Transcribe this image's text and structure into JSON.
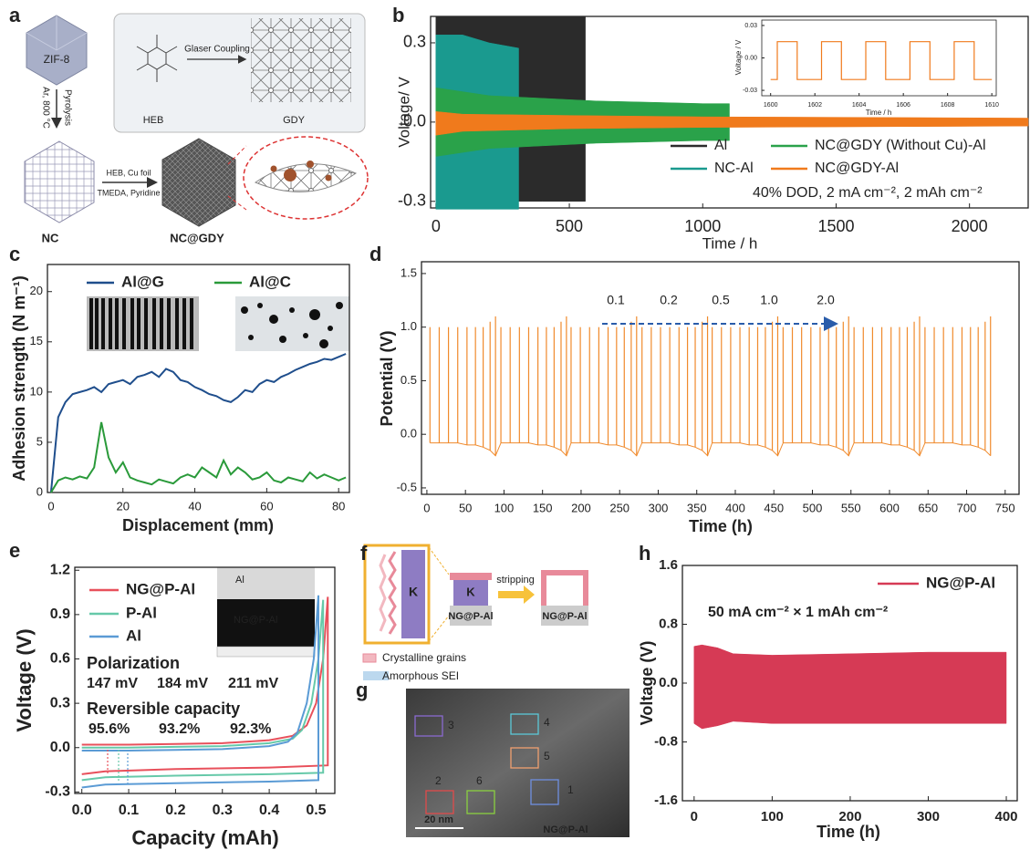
{
  "panel_letters": [
    "a",
    "b",
    "c",
    "d",
    "e",
    "f",
    "g",
    "h"
  ],
  "panel_a": {
    "zif8": "ZIF-8",
    "conditions": "Ar, 800 °C",
    "pyrolysis": "Pyrolysis",
    "heb": "HEB",
    "coupling": "Glaser Coupling",
    "gdy": "GDY",
    "nc": "NC",
    "reagents1": "HEB, Cu foil",
    "reagents2": "TMEDA, Pyridine",
    "ncgdy": "NC@GDY"
  },
  "panel_f": {
    "k_large": "K",
    "k_small": "K",
    "label_before": "NG@P-Al",
    "stripping": "stripping",
    "label_after": "NG@P-Al",
    "legend_grains": "Crystalline grains",
    "legend_sei": "Amorphous SEI"
  },
  "panel_g": {
    "regions": [
      "1",
      "2",
      "3",
      "4",
      "5",
      "6"
    ],
    "scale_bar": "20 nm",
    "sample": "NG@P-Al"
  },
  "chart_data": [
    {
      "type": "band",
      "x_label": "Time / h",
      "y_label": "Voltage/ V",
      "xlim": [
        -20,
        2220
      ],
      "ylim": [
        -0.325,
        0.4
      ],
      "xticks": [
        0,
        500,
        1000,
        1500,
        2000
      ],
      "yticks": [
        -0.3,
        {
          "value": 0,
          "label": "0.0"
        },
        0.3
      ],
      "note": "40% DOD,  2 mA cm⁻², 2 mAh cm⁻²",
      "series": [
        {
          "name": "Al",
          "color": "#2b2b2b",
          "x": [
            0,
            50,
            100,
            200,
            300,
            400,
            500,
            560
          ],
          "upper": [
            0.4,
            0.4,
            0.4,
            0.4,
            0.4,
            0.4,
            0.4,
            0.4
          ],
          "lower": [
            -0.3,
            -0.29,
            -0.3,
            -0.3,
            -0.3,
            -0.3,
            -0.3,
            -0.3
          ]
        },
        {
          "name": "NC-Al",
          "color": "#1a9a8f",
          "x": [
            0,
            100,
            200,
            310
          ],
          "upper": [
            0.33,
            0.33,
            0.3,
            0.28
          ],
          "lower": [
            -0.33,
            -0.33,
            -0.33,
            -0.33
          ]
        },
        {
          "name": "NC@GDY (Without Cu)-Al",
          "color": "#2aa24a",
          "x": [
            0,
            200,
            400,
            600,
            800,
            1000,
            1100
          ],
          "upper": [
            0.13,
            0.1,
            0.09,
            0.08,
            0.075,
            0.07,
            0.07
          ],
          "lower": [
            -0.13,
            -0.1,
            -0.09,
            -0.08,
            -0.075,
            -0.07,
            -0.07
          ]
        },
        {
          "name": "NC@GDY-Al",
          "color": "#f07a1c",
          "x": [
            0,
            100,
            500,
            1000,
            1500,
            2000,
            2220
          ],
          "upper": [
            0.04,
            0.03,
            0.025,
            0.02,
            0.018,
            0.016,
            0.015
          ],
          "lower": [
            -0.05,
            -0.035,
            -0.025,
            -0.02,
            -0.018,
            -0.016,
            -0.015
          ]
        }
      ]
    },
    {
      "type": "line",
      "x_label": "Time / h",
      "y_label": "Voltage / V",
      "xlim": [
        1599.6,
        1610.2
      ],
      "ylim": [
        -0.035,
        0.035
      ],
      "xticks": [
        1600,
        1602,
        1604,
        1606,
        1608,
        1610
      ],
      "yticks": [
        -0.03,
        {
          "value": 0,
          "label": "0.00"
        },
        0.03
      ],
      "x": [
        1600,
        1600.3,
        1600.3,
        1601.2,
        1601.2,
        1602.3,
        1602.3,
        1603.2,
        1603.2,
        1604.3,
        1604.3,
        1605.2,
        1605.2,
        1606.3,
        1606.3,
        1607.2,
        1607.2,
        1608.3,
        1608.3,
        1609.2,
        1609.2,
        1610
      ],
      "series": [
        {
          "color": "#f07a1c",
          "values": [
            -0.02,
            -0.02,
            0.015,
            0.015,
            -0.02,
            -0.02,
            0.015,
            0.015,
            -0.02,
            -0.02,
            0.015,
            0.015,
            -0.02,
            -0.02,
            0.015,
            0.015,
            -0.02,
            -0.02,
            0.015,
            0.015,
            -0.02,
            -0.02
          ]
        }
      ]
    },
    {
      "type": "line",
      "x_label": "Displacement (mm)",
      "y_label": "Adhesion strength (N m⁻¹)",
      "xlim": [
        -1,
        83
      ],
      "ylim": [
        0,
        22.7
      ],
      "xticks": [
        0,
        20,
        40,
        60,
        80
      ],
      "yticks": [
        0,
        5,
        10,
        15,
        20
      ],
      "x": [
        0,
        2,
        4,
        6,
        8,
        10,
        12,
        14,
        16,
        18,
        20,
        22,
        24,
        26,
        28,
        30,
        32,
        34,
        36,
        38,
        40,
        42,
        44,
        46,
        48,
        50,
        52,
        54,
        56,
        58,
        60,
        62,
        64,
        66,
        68,
        70,
        72,
        74,
        76,
        78,
        80,
        82
      ],
      "series": [
        {
          "name": "Al@G",
          "color": "#1f4e8c",
          "values": [
            0,
            7.5,
            9,
            9.8,
            10,
            10.2,
            10.5,
            10,
            10.8,
            11,
            11.2,
            10.8,
            11.5,
            11.7,
            12,
            11.5,
            12.3,
            12,
            11.2,
            11,
            10.5,
            10.2,
            9.8,
            9.6,
            9.2,
            9,
            9.5,
            10.2,
            10,
            10.8,
            11.2,
            11,
            11.5,
            11.8,
            12.2,
            12.5,
            12.8,
            13,
            13.3,
            13.2,
            13.5,
            13.8
          ]
        },
        {
          "name": "Al@C",
          "color": "#2a9a3a",
          "values": [
            0,
            1.2,
            1.5,
            1.3,
            1.6,
            1.4,
            2.5,
            7,
            3.5,
            2,
            3,
            1.5,
            1.2,
            1,
            0.8,
            1.3,
            1.1,
            0.9,
            1.5,
            1.8,
            1.5,
            2.5,
            2,
            1.5,
            3.2,
            1.8,
            2.5,
            2,
            1.3,
            1.5,
            2,
            1.2,
            1,
            1.5,
            1.3,
            1.1,
            2,
            1.4,
            1.8,
            1.5,
            1.2,
            1.5
          ]
        }
      ]
    },
    {
      "type": "spikes",
      "x_label": "Time (h)",
      "y_label": "Potential (V)",
      "xlim": [
        -7,
        768
      ],
      "ylim": [
        -0.56,
        1.61
      ],
      "xticks": [
        0,
        50,
        100,
        150,
        200,
        250,
        300,
        350,
        400,
        450,
        500,
        550,
        600,
        650,
        700,
        750
      ],
      "yticks": [
        -0.5,
        {
          "value": 0,
          "label": "0.0"
        },
        0.5,
        {
          "value": 1,
          "label": "1.0"
        },
        1.5
      ],
      "rates": [
        "0.1",
        "0.2",
        "0.5",
        "1.0",
        "2.0"
      ],
      "series": [
        {
          "color": "#f08a2c",
          "x": [
            4,
            16,
            28,
            40,
            52,
            63,
            73,
            82,
            89,
            96,
            108,
            120,
            132,
            144,
            155,
            165,
            174,
            181,
            187,
            199,
            211,
            223,
            235,
            246,
            256,
            265,
            272,
            279,
            291,
            303,
            315,
            327,
            338,
            348,
            357,
            364,
            370,
            382,
            394,
            406,
            418,
            429,
            439,
            448,
            455,
            462,
            474,
            486,
            498,
            510,
            521,
            531,
            540,
            547,
            554,
            566,
            578,
            590,
            602,
            613,
            623,
            632,
            639,
            646,
            658,
            670,
            682,
            694,
            705,
            715,
            724,
            731
          ],
          "upper": [
            1,
            1,
            1,
            1,
            1,
            1,
            1,
            1.05,
            1.1,
            1,
            1,
            1,
            1,
            1,
            1,
            1,
            1.05,
            1.1,
            1,
            1,
            1,
            1,
            1,
            1,
            1,
            1.05,
            1.1,
            1,
            1,
            1,
            1,
            1,
            1,
            1,
            1.05,
            1.1,
            1,
            1,
            1,
            1,
            1,
            1,
            1,
            1.05,
            1.1,
            1,
            1,
            1,
            1,
            1,
            1,
            1,
            1.05,
            1.1,
            1,
            1,
            1,
            1,
            1,
            1,
            1,
            1.05,
            1.1,
            1,
            1,
            1,
            1,
            1,
            1,
            1,
            1.05,
            1.1
          ],
          "lower": [
            -0.08,
            -0.08,
            -0.08,
            -0.08,
            -0.1,
            -0.1,
            -0.12,
            -0.15,
            -0.2,
            -0.08,
            -0.08,
            -0.08,
            -0.08,
            -0.1,
            -0.1,
            -0.12,
            -0.15,
            -0.2,
            -0.08,
            -0.08,
            -0.08,
            -0.08,
            -0.1,
            -0.1,
            -0.12,
            -0.15,
            -0.2,
            -0.08,
            -0.08,
            -0.08,
            -0.08,
            -0.1,
            -0.1,
            -0.12,
            -0.15,
            -0.2,
            -0.08,
            -0.08,
            -0.08,
            -0.08,
            -0.1,
            -0.1,
            -0.12,
            -0.15,
            -0.2,
            -0.08,
            -0.08,
            -0.08,
            -0.08,
            -0.1,
            -0.1,
            -0.12,
            -0.15,
            -0.2,
            -0.08,
            -0.08,
            -0.08,
            -0.08,
            -0.1,
            -0.1,
            -0.12,
            -0.15,
            -0.2,
            -0.08,
            -0.08,
            -0.08,
            -0.08,
            -0.1,
            -0.1,
            -0.12,
            -0.15,
            -0.2
          ]
        }
      ]
    },
    {
      "type": "line",
      "x_label": "Capacity (mAh)",
      "y_label": "Voltage (V)",
      "xlim": [
        -0.015,
        0.54
      ],
      "ylim": [
        -0.31,
        1.22
      ],
      "xticks": [
        {
          "value": 0,
          "label": "0.0"
        },
        0.1,
        0.2,
        0.3,
        0.4,
        0.5
      ],
      "yticks": [
        -0.3,
        {
          "value": 0,
          "label": "0.0"
        },
        0.3,
        0.6,
        0.9,
        1.2
      ],
      "photo_labels": [
        "Al",
        "NG@P-Al"
      ],
      "polarization": {
        "title": "Polarization",
        "labels": [
          "147 mV",
          "184 mV",
          "211 mV"
        ]
      },
      "reversible_capacity": {
        "title": "Reversible capacity",
        "labels": [
          "95.6%",
          "93.2%",
          "92.3%"
        ]
      },
      "series": [
        {
          "name": "NG@P-Al",
          "color": "#e8505b",
          "x": [
            0,
            0.1,
            0.2,
            0.3,
            0.4,
            0.45,
            0.48,
            0.5,
            0.515,
            0.525,
            0.525,
            0.4,
            0.2,
            0.05,
            0
          ],
          "values": [
            0.02,
            0.02,
            0.025,
            0.03,
            0.05,
            0.08,
            0.15,
            0.3,
            0.6,
            1.02,
            -0.12,
            -0.135,
            -0.145,
            -0.16,
            -0.18
          ]
        },
        {
          "name": "P-Al",
          "color": "#66c9a9",
          "x": [
            0,
            0.1,
            0.2,
            0.3,
            0.4,
            0.45,
            0.47,
            0.49,
            0.505,
            0.515,
            0.515,
            0.4,
            0.2,
            0.05,
            0
          ],
          "values": [
            0,
            0,
            0.005,
            0.01,
            0.03,
            0.06,
            0.12,
            0.3,
            0.6,
            1,
            -0.17,
            -0.18,
            -0.19,
            -0.2,
            -0.22
          ]
        },
        {
          "name": "Al",
          "color": "#5b9bd5",
          "x": [
            0,
            0.1,
            0.2,
            0.3,
            0.4,
            0.44,
            0.46,
            0.48,
            0.495,
            0.505,
            0.505,
            0.4,
            0.2,
            0.05,
            0
          ],
          "values": [
            -0.02,
            -0.02,
            -0.015,
            -0.01,
            0.01,
            0.04,
            0.1,
            0.3,
            0.6,
            1.03,
            -0.22,
            -0.23,
            -0.24,
            -0.25,
            -0.27
          ]
        }
      ]
    },
    {
      "type": "band",
      "x_label": "Time (h)",
      "y_label": "Voltage (V)",
      "xlim": [
        -15,
        414
      ],
      "ylim": [
        -1.6,
        1.6
      ],
      "xticks": [
        0,
        100,
        200,
        300,
        400
      ],
      "yticks": [
        -1.6,
        -0.8,
        {
          "value": 0,
          "label": "0.0"
        },
        0.8,
        1.6
      ],
      "note": "50 mA cm⁻² × 1 mAh cm⁻²",
      "series": [
        {
          "name": "NG@P-Al",
          "color": "#d63a55",
          "x": [
            0,
            10,
            30,
            50,
            100,
            200,
            300,
            400
          ],
          "upper": [
            0.5,
            0.52,
            0.48,
            0.4,
            0.38,
            0.4,
            0.42,
            0.42
          ],
          "lower": [
            -0.55,
            -0.62,
            -0.58,
            -0.52,
            -0.55,
            -0.55,
            -0.55,
            -0.55
          ]
        }
      ]
    }
  ]
}
